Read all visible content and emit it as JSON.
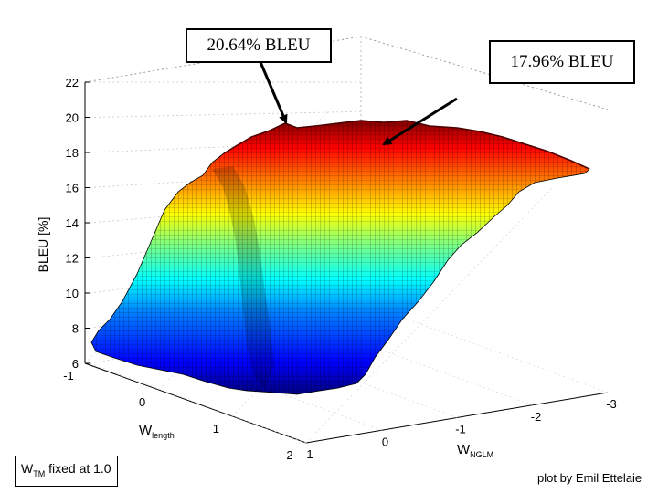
{
  "chart_data": {
    "type": "surface",
    "title": "",
    "zlabel": "BLEU [%]",
    "xlabel_main": "W",
    "xlabel_sub": "length",
    "ylabel_main": "W",
    "ylabel_sub": "NGLM",
    "zlim": [
      6,
      22
    ],
    "z_ticks": [
      "22",
      "20",
      "18",
      "16",
      "14",
      "12",
      "10",
      "8",
      "6"
    ],
    "x_ticks": [
      "-1",
      "0",
      "1",
      "2"
    ],
    "y_ticks": [
      "1",
      "0",
      "-1",
      "-2",
      "-3"
    ],
    "colormap": [
      "#00007f",
      "#0000ff",
      "#007fff",
      "#00ffff",
      "#7fff7f",
      "#ffff00",
      "#ff7f00",
      "#ff0000",
      "#7f0000"
    ],
    "grid": true,
    "annotations": [
      {
        "name": "peak",
        "text": "20.64% BLEU",
        "value": 20.64
      },
      {
        "name": "plateau",
        "text": "17.96% BLEU",
        "value": 17.96
      }
    ]
  },
  "footnote": {
    "prefix": "W",
    "subscript": "TM",
    "suffix": " fixed at 1.0"
  },
  "credit": "plot by Emil Ettelaie"
}
